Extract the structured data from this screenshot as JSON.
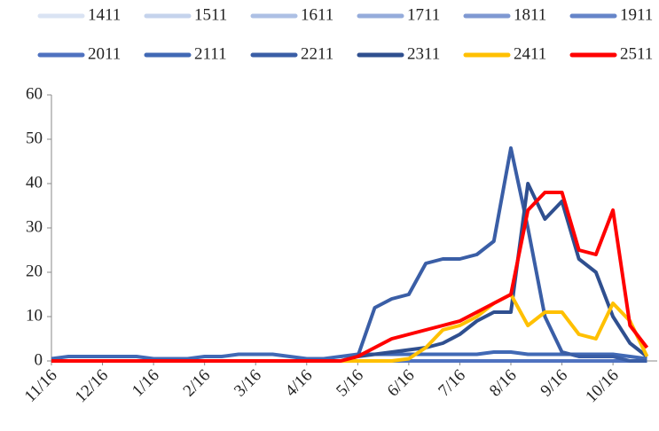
{
  "chart_data": {
    "type": "line",
    "categories": [
      "11/16",
      null,
      null,
      "12/16",
      null,
      null,
      "1/16",
      null,
      null,
      "2/16",
      null,
      null,
      "3/16",
      null,
      null,
      "4/16",
      null,
      null,
      "5/16",
      null,
      null,
      "6/16",
      null,
      null,
      "7/16",
      null,
      null,
      "8/16",
      null,
      null,
      "9/16",
      null,
      null,
      "10/16",
      null,
      null
    ],
    "ylim": [
      0,
      60
    ],
    "yticks": [
      0,
      10,
      20,
      30,
      40,
      50,
      60
    ],
    "legend": "top",
    "series": [
      {
        "name": "1411",
        "color": "#dae3f3",
        "values": [
          0,
          0,
          0,
          0,
          0,
          0,
          0,
          0,
          0,
          0,
          0,
          0,
          0,
          0,
          0,
          0,
          0,
          0,
          0,
          0,
          0,
          0,
          0,
          0,
          0,
          0,
          0,
          0,
          0,
          0,
          0,
          0,
          0,
          0,
          0,
          0
        ]
      },
      {
        "name": "1511",
        "color": "#c5d3ec",
        "values": [
          0,
          0,
          0,
          0,
          0,
          0,
          0,
          0,
          0,
          0,
          0,
          0,
          0,
          0,
          0,
          0,
          0,
          0,
          0,
          0,
          0,
          0,
          0,
          0,
          0,
          0,
          0,
          0,
          0,
          0,
          0,
          0,
          0,
          0,
          0,
          0
        ]
      },
      {
        "name": "1611",
        "color": "#adc0e4",
        "values": [
          0,
          0,
          0,
          0,
          0,
          0,
          0,
          0,
          0,
          0,
          0,
          0,
          0,
          0,
          0,
          0,
          0,
          0,
          0,
          0,
          0,
          0,
          0,
          0,
          0,
          0,
          0,
          0,
          0,
          0,
          0,
          0,
          0,
          0,
          0,
          0
        ]
      },
      {
        "name": "1711",
        "color": "#95acdb",
        "values": [
          0,
          0,
          0,
          0,
          0,
          0,
          0,
          0,
          0,
          0,
          0,
          0,
          0,
          0,
          0,
          0,
          0,
          0,
          0,
          0,
          0,
          0,
          0,
          0,
          0,
          0,
          0,
          0,
          0,
          0,
          0,
          0,
          0,
          0,
          0,
          0
        ]
      },
      {
        "name": "1811",
        "color": "#7f99d2",
        "values": [
          0,
          0,
          0,
          0,
          0,
          0,
          0,
          0,
          0,
          0,
          0,
          0,
          0,
          0,
          0,
          0,
          0,
          0,
          0,
          0,
          0,
          0,
          0,
          0,
          0,
          0,
          0,
          0,
          0,
          0,
          0,
          0,
          0,
          0,
          0,
          0
        ]
      },
      {
        "name": "1911",
        "color": "#6685c9",
        "values": [
          0,
          0,
          0,
          0,
          0,
          0,
          0,
          0,
          0,
          0,
          0,
          0,
          0,
          0,
          0,
          0,
          0,
          0,
          0,
          0,
          0,
          0,
          0,
          0,
          0,
          0,
          0,
          0,
          0,
          0,
          0,
          0,
          0,
          0,
          0,
          0
        ]
      },
      {
        "name": "2011",
        "color": "#4f72c0",
        "values": [
          0,
          0,
          0,
          0,
          0,
          0,
          0,
          0,
          0,
          0,
          0,
          0,
          0,
          0,
          0,
          0,
          0,
          0,
          0,
          0,
          0,
          0,
          0,
          0,
          0,
          0,
          0,
          0,
          0,
          0,
          0,
          0,
          0,
          0,
          0,
          0
        ]
      },
      {
        "name": "2111",
        "color": "#4169b5",
        "values": [
          0.5,
          1,
          1,
          1,
          1,
          1,
          0.5,
          0.5,
          0.5,
          1,
          1,
          1.5,
          1.5,
          1.5,
          1,
          0.5,
          0.5,
          1,
          1.5,
          1.5,
          1.5,
          1.5,
          1.5,
          1.5,
          1.5,
          1.5,
          2,
          2,
          1.5,
          1.5,
          1.5,
          1.5,
          1.5,
          1.5,
          1,
          0.5
        ]
      },
      {
        "name": "2211",
        "color": "#3a5ea6",
        "values": [
          0,
          0,
          0,
          0,
          0,
          0,
          0,
          0,
          0,
          0,
          0,
          0,
          0,
          0,
          0,
          0,
          0,
          0,
          1,
          12,
          14,
          15,
          22,
          23,
          23,
          24,
          27,
          48,
          30,
          10,
          2,
          1,
          1,
          1,
          0,
          0
        ]
      },
      {
        "name": "2311",
        "color": "#2f4f8f",
        "values": [
          0,
          0,
          0,
          0,
          0,
          0,
          0,
          0,
          0,
          0,
          0,
          0,
          0,
          0,
          0,
          0,
          0,
          0,
          1,
          1.5,
          2,
          2.5,
          3,
          4,
          6,
          9,
          11,
          11,
          40,
          32,
          36,
          23,
          20,
          10,
          4,
          1
        ]
      },
      {
        "name": "2411",
        "color": "#ffc000",
        "values": [
          0,
          0,
          0,
          0,
          0,
          0,
          0,
          0,
          0,
          0,
          0,
          0,
          0,
          0,
          0,
          0,
          0,
          0,
          0,
          0,
          0,
          0.5,
          3,
          7,
          8,
          10,
          13,
          15,
          8,
          11,
          11,
          6,
          5,
          13,
          9,
          1
        ]
      },
      {
        "name": "2511",
        "color": "#ff0000",
        "values": [
          0,
          0,
          0,
          0,
          0,
          0,
          0,
          0,
          0,
          0,
          0,
          0,
          0,
          0,
          0,
          0,
          0,
          0,
          1,
          3,
          5,
          6,
          7,
          8,
          9,
          11,
          13,
          15,
          34,
          38,
          38,
          25,
          24,
          34,
          8,
          3
        ]
      }
    ]
  }
}
